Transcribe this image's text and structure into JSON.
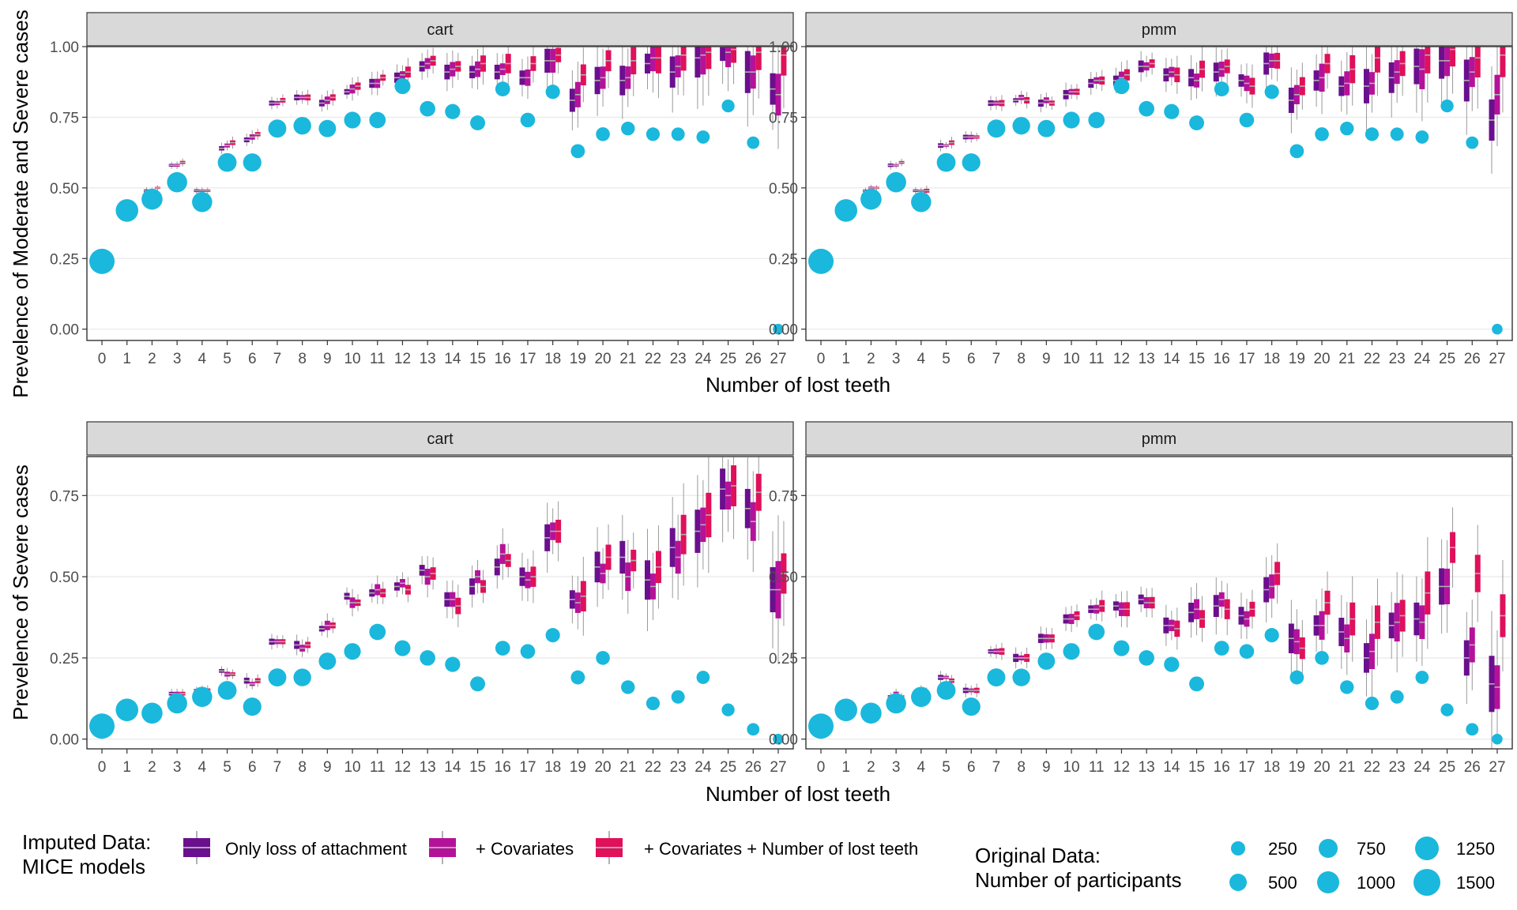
{
  "figure": {
    "x_label": "Number of lost teeth",
    "rows": [
      {
        "y_label": "Prevelence of Moderate and Severe cases",
        "y_ticks": [
          "0.00",
          "0.25",
          "0.50",
          "0.75",
          "1.00"
        ],
        "ylim": [
          -0.04,
          1.0
        ]
      },
      {
        "y_label": "Prevelence of Severe cases",
        "y_ticks": [
          "0.00",
          "0.25",
          "0.50",
          "0.75"
        ],
        "ylim": [
          -0.03,
          0.87
        ]
      }
    ],
    "panels": [
      "cart",
      "pmm"
    ],
    "x_ticks": [
      "0",
      "1",
      "2",
      "3",
      "4",
      "5",
      "6",
      "7",
      "8",
      "9",
      "10",
      "11",
      "12",
      "13",
      "14",
      "15",
      "16",
      "17",
      "18",
      "19",
      "20",
      "21",
      "22",
      "23",
      "24",
      "25",
      "26",
      "27"
    ]
  },
  "legend": {
    "imputed_title_line1": "Imputed Data:",
    "imputed_title_line2": "MICE models",
    "model_labels": [
      "Only loss of attachment",
      "+ Covariates",
      "+ Covariates + Number of lost teeth"
    ],
    "original_title_line1": "Original Data:",
    "original_title_line2": "Number of participants",
    "size_labels": [
      "250",
      "500",
      "750",
      "1000",
      "1250",
      "1500"
    ]
  },
  "colors": {
    "model_1": "#6a0f8e",
    "model_2": "#b5129a",
    "model_3": "#e0105a",
    "original": "#1ab8dc",
    "strip": "#d9d9d9",
    "grid": "#ebebeb"
  },
  "chart_data": [
    {
      "type": "box+scatter",
      "title": "cart",
      "ylabel": "Prevelence of Moderate and Severe cases",
      "xlabel": "Number of lost teeth",
      "x": [
        0,
        1,
        2,
        3,
        4,
        5,
        6,
        7,
        8,
        9,
        10,
        11,
        12,
        13,
        14,
        15,
        16,
        17,
        18,
        19,
        20,
        21,
        22,
        23,
        24,
        25,
        26,
        27
      ],
      "original_values": [
        0.24,
        0.42,
        0.46,
        0.52,
        0.45,
        0.59,
        0.59,
        0.71,
        0.72,
        0.71,
        0.74,
        0.74,
        0.86,
        0.78,
        0.77,
        0.73,
        0.85,
        0.74,
        0.84,
        0.63,
        0.69,
        0.71,
        0.69,
        0.69,
        0.68,
        0.79,
        0.66,
        0.0
      ],
      "participants": [
        1500,
        1100,
        900,
        800,
        800,
        650,
        600,
        580,
        540,
        500,
        450,
        420,
        380,
        350,
        330,
        310,
        300,
        290,
        270,
        250,
        240,
        230,
        220,
        210,
        200,
        180,
        160,
        80
      ],
      "imputed_medians": [
        [
          0.24,
          0.43,
          0.49,
          0.58,
          0.49,
          0.64,
          0.67,
          0.8,
          0.82,
          0.8,
          0.84,
          0.87,
          0.89,
          0.93,
          0.91,
          0.91,
          0.91,
          0.89,
          0.95,
          0.81,
          0.88,
          0.88,
          0.94,
          0.91,
          0.96,
          1.0,
          0.91,
          0.85
        ],
        [
          0.24,
          0.43,
          0.49,
          0.58,
          0.49,
          0.65,
          0.68,
          0.8,
          0.82,
          0.81,
          0.85,
          0.87,
          0.9,
          0.94,
          0.92,
          0.92,
          0.92,
          0.89,
          0.95,
          0.83,
          0.89,
          0.89,
          0.96,
          0.93,
          0.97,
          0.98,
          0.91,
          0.83
        ],
        [
          0.24,
          0.43,
          0.5,
          0.59,
          0.49,
          0.66,
          0.69,
          0.81,
          0.82,
          0.82,
          0.86,
          0.89,
          0.91,
          0.95,
          0.93,
          0.94,
          0.94,
          0.94,
          0.97,
          0.9,
          0.95,
          0.95,
          0.96,
          0.97,
          0.98,
          0.99,
          0.98,
          0.97
        ]
      ]
    },
    {
      "type": "box+scatter",
      "title": "pmm",
      "ylabel": "Prevelence of Moderate and Severe cases",
      "xlabel": "Number of lost teeth",
      "x": [
        0,
        1,
        2,
        3,
        4,
        5,
        6,
        7,
        8,
        9,
        10,
        11,
        12,
        13,
        14,
        15,
        16,
        17,
        18,
        19,
        20,
        21,
        22,
        23,
        24,
        25,
        26,
        27
      ],
      "original_values": [
        0.24,
        0.42,
        0.46,
        0.52,
        0.45,
        0.59,
        0.59,
        0.71,
        0.72,
        0.71,
        0.74,
        0.74,
        0.86,
        0.78,
        0.77,
        0.73,
        0.85,
        0.74,
        0.84,
        0.63,
        0.69,
        0.71,
        0.69,
        0.69,
        0.68,
        0.79,
        0.66,
        0.0
      ],
      "participants": [
        1500,
        1100,
        900,
        800,
        800,
        650,
        600,
        580,
        540,
        500,
        450,
        420,
        380,
        350,
        330,
        310,
        300,
        290,
        270,
        250,
        240,
        230,
        220,
        210,
        200,
        180,
        160,
        80
      ],
      "imputed_medians": [
        [
          0.24,
          0.43,
          0.49,
          0.58,
          0.49,
          0.65,
          0.68,
          0.8,
          0.81,
          0.8,
          0.83,
          0.87,
          0.88,
          0.93,
          0.9,
          0.89,
          0.91,
          0.88,
          0.94,
          0.81,
          0.88,
          0.86,
          0.86,
          0.89,
          0.93,
          0.95,
          0.88,
          0.74
        ],
        [
          0.24,
          0.43,
          0.5,
          0.58,
          0.49,
          0.65,
          0.68,
          0.8,
          0.82,
          0.81,
          0.84,
          0.88,
          0.89,
          0.93,
          0.91,
          0.88,
          0.92,
          0.87,
          0.95,
          0.83,
          0.89,
          0.87,
          0.87,
          0.91,
          0.92,
          0.95,
          0.91,
          0.83
        ],
        [
          0.24,
          0.43,
          0.5,
          0.59,
          0.49,
          0.66,
          0.68,
          0.8,
          0.81,
          0.8,
          0.84,
          0.88,
          0.9,
          0.94,
          0.9,
          0.92,
          0.93,
          0.86,
          0.95,
          0.86,
          0.94,
          0.92,
          0.96,
          0.94,
          0.97,
          0.99,
          0.96,
          0.97
        ]
      ]
    },
    {
      "type": "box+scatter",
      "title": "cart",
      "ylabel": "Prevelence of Severe cases",
      "xlabel": "Number of lost teeth",
      "x": [
        0,
        1,
        2,
        3,
        4,
        5,
        6,
        7,
        8,
        9,
        10,
        11,
        12,
        13,
        14,
        15,
        16,
        17,
        18,
        19,
        20,
        21,
        22,
        23,
        24,
        25,
        26,
        27
      ],
      "original_values": [
        0.04,
        0.09,
        0.08,
        0.11,
        0.13,
        0.15,
        0.1,
        0.19,
        0.19,
        0.24,
        0.27,
        0.33,
        0.28,
        0.25,
        0.23,
        0.17,
        0.28,
        0.27,
        0.32,
        0.19,
        0.25,
        0.16,
        0.11,
        0.13,
        0.19,
        0.09,
        0.03,
        0.0
      ],
      "participants": [
        1500,
        1100,
        900,
        800,
        800,
        650,
        600,
        580,
        540,
        500,
        450,
        420,
        380,
        350,
        330,
        310,
        300,
        290,
        270,
        250,
        240,
        230,
        220,
        210,
        200,
        180,
        160,
        80
      ],
      "imputed_medians": [
        [
          0.04,
          0.09,
          0.09,
          0.14,
          0.15,
          0.21,
          0.18,
          0.3,
          0.29,
          0.34,
          0.44,
          0.45,
          0.47,
          0.52,
          0.43,
          0.47,
          0.53,
          0.5,
          0.62,
          0.43,
          0.53,
          0.56,
          0.49,
          0.59,
          0.64,
          0.77,
          0.71,
          0.46
        ],
        [
          0.04,
          0.09,
          0.09,
          0.14,
          0.15,
          0.2,
          0.17,
          0.3,
          0.28,
          0.35,
          0.42,
          0.46,
          0.48,
          0.5,
          0.43,
          0.5,
          0.57,
          0.49,
          0.64,
          0.42,
          0.51,
          0.5,
          0.47,
          0.56,
          0.66,
          0.75,
          0.67,
          0.46
        ],
        [
          0.04,
          0.09,
          0.09,
          0.14,
          0.15,
          0.2,
          0.18,
          0.3,
          0.29,
          0.35,
          0.42,
          0.45,
          0.46,
          0.51,
          0.41,
          0.47,
          0.55,
          0.5,
          0.64,
          0.44,
          0.56,
          0.55,
          0.53,
          0.63,
          0.69,
          0.78,
          0.76,
          0.51
        ]
      ]
    },
    {
      "type": "box+scatter",
      "title": "pmm",
      "ylabel": "Prevelence of Severe cases",
      "xlabel": "Number of lost teeth",
      "x": [
        0,
        1,
        2,
        3,
        4,
        5,
        6,
        7,
        8,
        9,
        10,
        11,
        12,
        13,
        14,
        15,
        16,
        17,
        18,
        19,
        20,
        21,
        22,
        23,
        24,
        25,
        26,
        27
      ],
      "original_values": [
        0.04,
        0.09,
        0.08,
        0.11,
        0.13,
        0.15,
        0.1,
        0.19,
        0.19,
        0.24,
        0.27,
        0.33,
        0.28,
        0.25,
        0.23,
        0.17,
        0.28,
        0.27,
        0.32,
        0.19,
        0.25,
        0.16,
        0.11,
        0.13,
        0.19,
        0.09,
        0.03,
        0.0
      ],
      "participants": [
        1500,
        1100,
        900,
        800,
        800,
        650,
        600,
        580,
        540,
        500,
        450,
        420,
        380,
        350,
        330,
        310,
        300,
        290,
        270,
        250,
        240,
        230,
        220,
        210,
        200,
        180,
        160,
        80
      ],
      "imputed_medians": [
        [
          0.04,
          0.09,
          0.09,
          0.13,
          0.14,
          0.19,
          0.15,
          0.27,
          0.25,
          0.31,
          0.37,
          0.4,
          0.41,
          0.43,
          0.35,
          0.39,
          0.41,
          0.38,
          0.46,
          0.31,
          0.35,
          0.33,
          0.25,
          0.35,
          0.37,
          0.47,
          0.25,
          0.17
        ],
        [
          0.04,
          0.09,
          0.09,
          0.14,
          0.15,
          0.19,
          0.15,
          0.27,
          0.25,
          0.31,
          0.37,
          0.4,
          0.4,
          0.42,
          0.35,
          0.4,
          0.43,
          0.37,
          0.47,
          0.3,
          0.35,
          0.31,
          0.27,
          0.36,
          0.36,
          0.47,
          0.29,
          0.16
        ],
        [
          0.04,
          0.09,
          0.09,
          0.13,
          0.14,
          0.18,
          0.15,
          0.27,
          0.25,
          0.31,
          0.38,
          0.41,
          0.4,
          0.42,
          0.34,
          0.37,
          0.4,
          0.4,
          0.51,
          0.28,
          0.42,
          0.37,
          0.36,
          0.38,
          0.45,
          0.59,
          0.51,
          0.38
        ]
      ]
    }
  ]
}
